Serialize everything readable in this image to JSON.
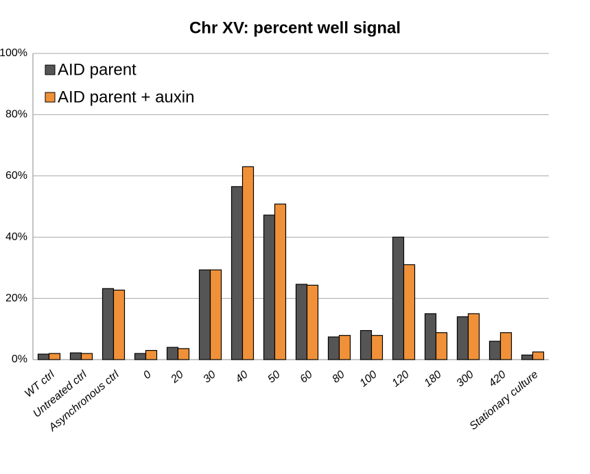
{
  "chart_data": {
    "type": "bar",
    "title": "Chr XV: percent well signal",
    "categories": [
      "WT ctrl",
      "Untreated ctrl",
      "Asynchronous ctrl",
      "0",
      "20",
      "30",
      "40",
      "50",
      "60",
      "80",
      "100",
      "120",
      "180",
      "300",
      "420",
      "Stationary culture"
    ],
    "series": [
      {
        "name": "AID parent",
        "color": "#555555",
        "values": [
          1.8,
          2.2,
          23.2,
          2.0,
          4.0,
          29.3,
          56.5,
          47.2,
          24.6,
          7.4,
          9.5,
          40.0,
          15.0,
          14.0,
          6.0,
          1.5
        ]
      },
      {
        "name": "AID parent + auxin",
        "color": "#f0913a",
        "values": [
          2.0,
          2.0,
          22.7,
          3.0,
          3.6,
          29.3,
          63.0,
          50.8,
          24.3,
          7.9,
          7.9,
          31.0,
          8.8,
          15.0,
          8.8,
          2.5
        ]
      }
    ],
    "ylim": [
      0,
      100
    ],
    "yticks": [
      {
        "value": 0,
        "label": "0%"
      },
      {
        "value": 20,
        "label": "20%"
      },
      {
        "value": 40,
        "label": "40%"
      },
      {
        "value": 60,
        "label": "60%"
      },
      {
        "value": 80,
        "label": "80%"
      },
      {
        "value": 100,
        "label": "100%"
      }
    ],
    "grid": true,
    "legend": "upper-left"
  }
}
